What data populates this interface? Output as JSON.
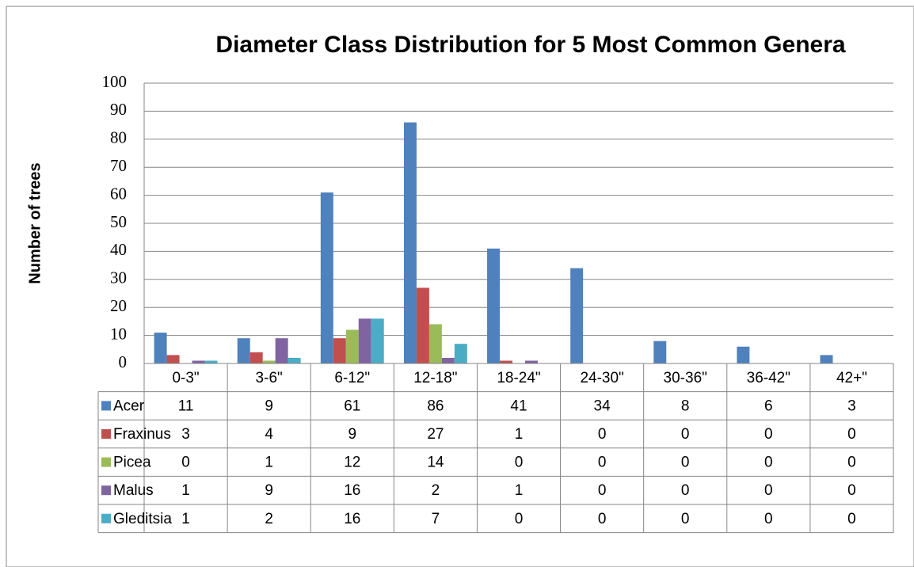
{
  "chart_data": {
    "type": "bar",
    "title": "Diameter Class Distribution for 5 Most Common Genera",
    "y_label": "Number of trees",
    "categories": [
      "0-3\"",
      "3-6\"",
      "6-12\"",
      "12-18\"",
      "18-24\"",
      "24-30\"",
      "30-36\"",
      "36-42\"",
      "42+\""
    ],
    "series": [
      {
        "name": "Acer",
        "color": "#4f81bd",
        "values": [
          11,
          9,
          61,
          86,
          41,
          34,
          8,
          6,
          3
        ]
      },
      {
        "name": "Fraxinus",
        "color": "#c0504d",
        "values": [
          3,
          4,
          9,
          27,
          1,
          0,
          0,
          0,
          0
        ]
      },
      {
        "name": "Picea",
        "color": "#9bbb59",
        "values": [
          0,
          1,
          12,
          14,
          0,
          0,
          0,
          0,
          0
        ]
      },
      {
        "name": "Malus",
        "color": "#8064a2",
        "values": [
          1,
          9,
          16,
          2,
          1,
          0,
          0,
          0,
          0
        ]
      },
      {
        "name": "Gleditsia",
        "color": "#4bacc6",
        "values": [
          1,
          2,
          16,
          7,
          0,
          0,
          0,
          0,
          0
        ]
      }
    ],
    "ylim": [
      0,
      100
    ],
    "yticks": [
      0,
      10,
      20,
      30,
      40,
      50,
      60,
      70,
      80,
      90,
      100
    ],
    "grid": true,
    "data_table": true
  }
}
